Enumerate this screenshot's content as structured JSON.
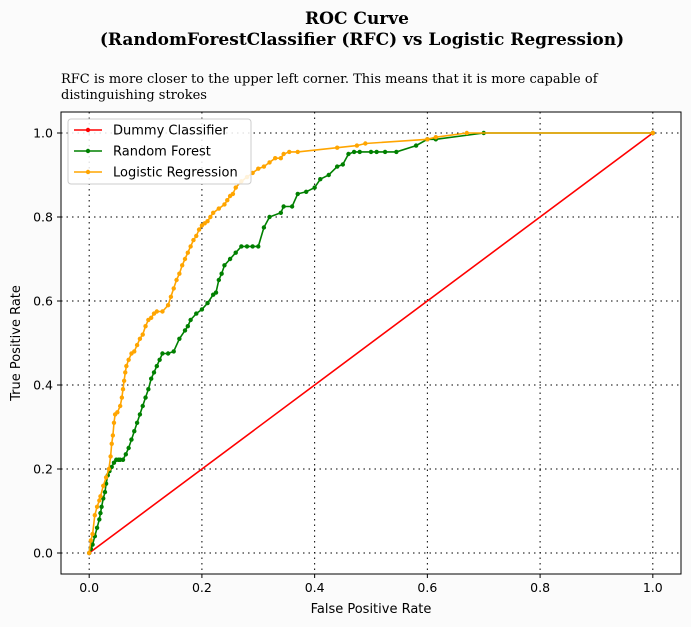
{
  "title_line1": "ROC Curve",
  "title_line2": "(RandomForestClassifier (RFC) vs Logistic Regression)",
  "subtitle_line1": "RFC is more closer to the upper left corner. This means that it is more capable of",
  "subtitle_line2": "distinguishing strokes",
  "chart_data": {
    "type": "line",
    "xlabel": "False Positive Rate",
    "ylabel": "True Positive Rate",
    "xlim": [
      -0.05,
      1.05
    ],
    "ylim": [
      -0.05,
      1.05
    ],
    "xticks": [
      "0.0",
      "0.2",
      "0.4",
      "0.6",
      "0.8",
      "1.0"
    ],
    "yticks": [
      "0.0",
      "0.2",
      "0.4",
      "0.6",
      "0.8",
      "1.0"
    ],
    "grid": "dotted",
    "legend_position": "top-left",
    "series": [
      {
        "name": "Dummy Classifier",
        "color": "#ff0000",
        "x": [
          0.0,
          1.0
        ],
        "y": [
          0.0,
          1.0
        ]
      },
      {
        "name": "Random Forest",
        "color": "#008000",
        "x": [
          0.0,
          0.003,
          0.006,
          0.01,
          0.014,
          0.018,
          0.02,
          0.022,
          0.025,
          0.028,
          0.03,
          0.033,
          0.036,
          0.04,
          0.044,
          0.048,
          0.052,
          0.055,
          0.06,
          0.065,
          0.07,
          0.075,
          0.08,
          0.085,
          0.09,
          0.095,
          0.1,
          0.105,
          0.11,
          0.115,
          0.12,
          0.125,
          0.13,
          0.14,
          0.15,
          0.16,
          0.17,
          0.175,
          0.18,
          0.19,
          0.2,
          0.21,
          0.22,
          0.225,
          0.23,
          0.235,
          0.24,
          0.25,
          0.26,
          0.27,
          0.28,
          0.29,
          0.3,
          0.31,
          0.32,
          0.34,
          0.345,
          0.36,
          0.37,
          0.385,
          0.4,
          0.41,
          0.425,
          0.44,
          0.45,
          0.46,
          0.47,
          0.48,
          0.5,
          0.51,
          0.525,
          0.545,
          0.58,
          0.6,
          0.615,
          0.7,
          1.0
        ],
        "y": [
          0.0,
          0.01,
          0.02,
          0.04,
          0.06,
          0.08,
          0.095,
          0.11,
          0.13,
          0.145,
          0.165,
          0.185,
          0.195,
          0.205,
          0.215,
          0.222,
          0.222,
          0.222,
          0.222,
          0.235,
          0.25,
          0.27,
          0.29,
          0.31,
          0.33,
          0.35,
          0.37,
          0.39,
          0.415,
          0.43,
          0.445,
          0.46,
          0.475,
          0.475,
          0.48,
          0.51,
          0.53,
          0.54,
          0.555,
          0.57,
          0.58,
          0.595,
          0.615,
          0.62,
          0.65,
          0.665,
          0.685,
          0.7,
          0.715,
          0.73,
          0.73,
          0.73,
          0.73,
          0.775,
          0.8,
          0.81,
          0.825,
          0.825,
          0.855,
          0.86,
          0.87,
          0.89,
          0.9,
          0.92,
          0.925,
          0.95,
          0.955,
          0.955,
          0.955,
          0.955,
          0.955,
          0.955,
          0.97,
          0.985,
          0.985,
          1.0,
          1.0
        ]
      },
      {
        "name": "Logistic Regression",
        "color": "#ffa500",
        "x": [
          0.0,
          0.003,
          0.006,
          0.01,
          0.014,
          0.018,
          0.02,
          0.025,
          0.03,
          0.035,
          0.038,
          0.04,
          0.042,
          0.044,
          0.046,
          0.05,
          0.055,
          0.058,
          0.06,
          0.062,
          0.064,
          0.066,
          0.07,
          0.075,
          0.08,
          0.085,
          0.09,
          0.095,
          0.1,
          0.105,
          0.11,
          0.115,
          0.12,
          0.13,
          0.14,
          0.145,
          0.15,
          0.155,
          0.16,
          0.165,
          0.17,
          0.175,
          0.18,
          0.185,
          0.19,
          0.195,
          0.2,
          0.205,
          0.21,
          0.215,
          0.22,
          0.23,
          0.24,
          0.245,
          0.25,
          0.255,
          0.26,
          0.27,
          0.28,
          0.29,
          0.3,
          0.31,
          0.32,
          0.33,
          0.34,
          0.345,
          0.355,
          0.37,
          0.44,
          0.475,
          0.49,
          0.6,
          0.615,
          0.67,
          1.0
        ],
        "y": [
          0.0,
          0.03,
          0.045,
          0.09,
          0.11,
          0.125,
          0.135,
          0.16,
          0.18,
          0.2,
          0.23,
          0.26,
          0.28,
          0.31,
          0.33,
          0.335,
          0.35,
          0.37,
          0.39,
          0.41,
          0.43,
          0.445,
          0.46,
          0.475,
          0.48,
          0.495,
          0.51,
          0.52,
          0.54,
          0.555,
          0.56,
          0.57,
          0.575,
          0.575,
          0.59,
          0.61,
          0.63,
          0.65,
          0.665,
          0.685,
          0.7,
          0.715,
          0.73,
          0.745,
          0.755,
          0.77,
          0.78,
          0.785,
          0.79,
          0.8,
          0.81,
          0.82,
          0.83,
          0.84,
          0.85,
          0.855,
          0.87,
          0.885,
          0.895,
          0.905,
          0.915,
          0.92,
          0.93,
          0.94,
          0.94,
          0.95,
          0.955,
          0.955,
          0.965,
          0.97,
          0.975,
          0.985,
          0.99,
          1.0,
          1.0
        ]
      }
    ]
  }
}
